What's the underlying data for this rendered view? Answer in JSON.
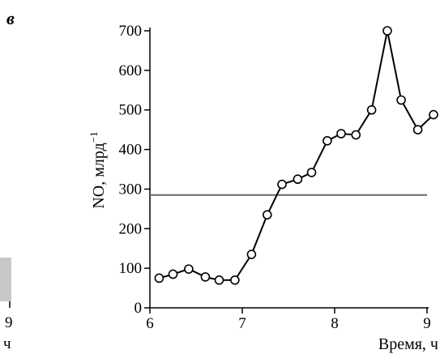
{
  "panel_label": "в",
  "left_fragment": {
    "tick_label": "9",
    "axis_fragment": "ч"
  },
  "chart_data": {
    "type": "line",
    "title": "",
    "xlabel": "Время, ч",
    "ylabel": "NO, млрд",
    "ylabel_superscript": "−1",
    "xlim": [
      6,
      9
    ],
    "ylim": [
      0,
      700
    ],
    "xticks": [
      6,
      7,
      8,
      9
    ],
    "yticks": [
      0,
      100,
      200,
      300,
      400,
      500,
      600,
      700
    ],
    "grid": false,
    "legend": "none",
    "reference_line": {
      "y": 285
    },
    "x": [
      6.1,
      6.25,
      6.42,
      6.6,
      6.75,
      6.92,
      7.1,
      7.27,
      7.43,
      7.6,
      7.75,
      7.92,
      8.07,
      8.23,
      8.4,
      8.57,
      8.72,
      8.9,
      9.07
    ],
    "values": [
      75,
      85,
      98,
      78,
      70,
      70,
      135,
      235,
      312,
      325,
      342,
      422,
      440,
      437,
      500,
      700,
      525,
      450,
      488
    ]
  }
}
